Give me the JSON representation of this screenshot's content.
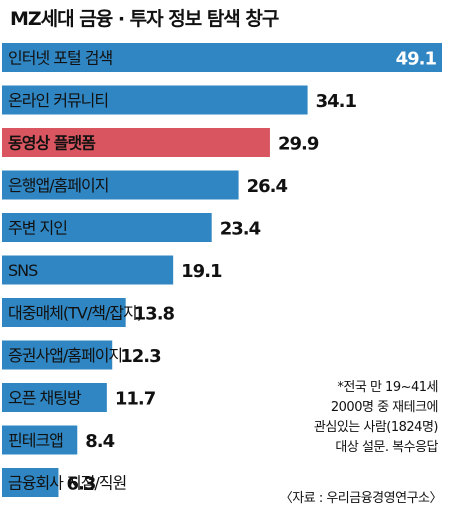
{
  "chart_data": {
    "type": "bar",
    "orientation": "horizontal",
    "title": "MZ세대 금융 · 투자 정보 탐색 창구",
    "categories": [
      "인터넷 포털 검색",
      "온라인 커뮤니티",
      "동영상 플랫폼",
      "은행앱/홈페이지",
      "주변 지인",
      "SNS",
      "대중매체(TV/책/잡지)",
      "증권사앱/홈페이지",
      "오픈 채팅방",
      "핀테크앱",
      "금융회사 지점/직원"
    ],
    "values": [
      49.1,
      34.1,
      29.9,
      26.4,
      23.4,
      19.1,
      13.8,
      12.3,
      11.7,
      8.4,
      6.3
    ],
    "value_labels": [
      "49.1",
      "34.1",
      "29.9",
      "26.4",
      "23.4",
      "19.1",
      "13.8",
      "12.3",
      "11.7",
      "8.4",
      "6.3"
    ],
    "highlight_index": 2,
    "colors": {
      "bar": "#2f86c2",
      "highlight": "#d9555f"
    },
    "xlim": [
      0,
      49.1
    ],
    "note": "*전국 만 19~41세\n2000명 중 재테크에\n관심있는 사람(1824명)\n대상 설문. 복수응답",
    "source": "〈자료 : 우리금융경영연구소〉"
  }
}
